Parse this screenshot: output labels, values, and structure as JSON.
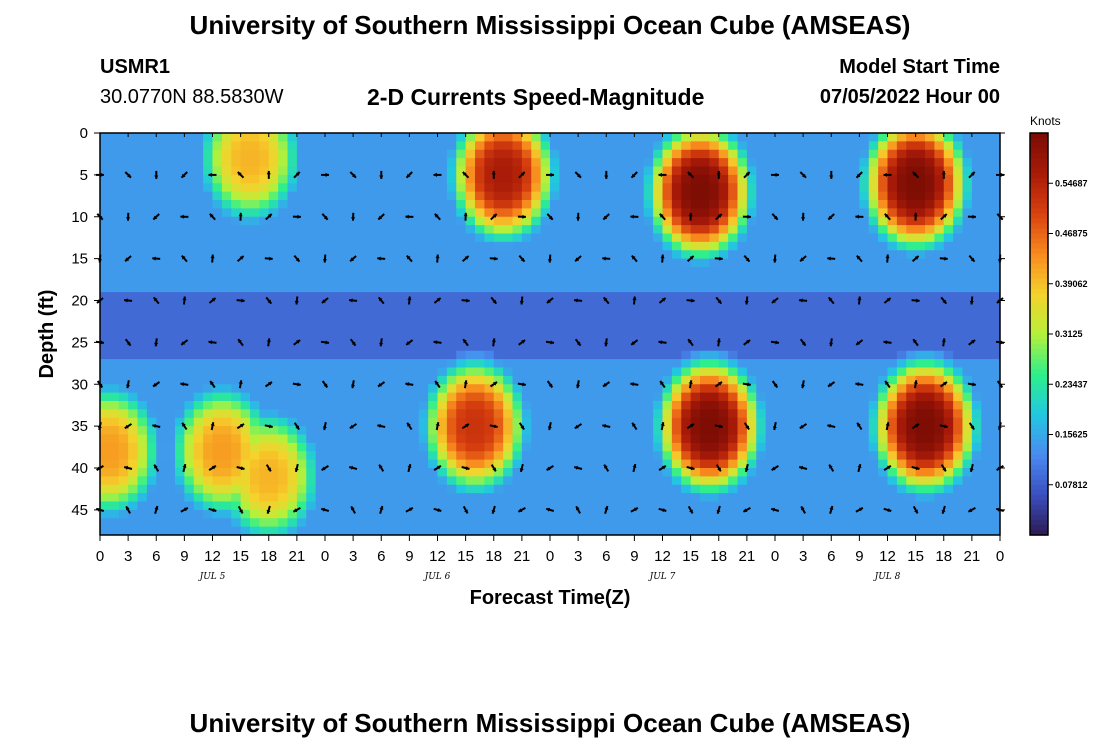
{
  "header": {
    "title": "University of Southern Mississippi Ocean Cube (AMSEAS)",
    "station": "USMR1",
    "coords": "30.0770N  88.5830W",
    "subtitle": "2-D Currents Speed-Magnitude",
    "start_label": "Model Start Time",
    "start_value": "07/05/2022 Hour 00"
  },
  "footer": {
    "title": "University of Southern Mississippi Ocean Cube (AMSEAS)"
  },
  "chart_data": {
    "type": "heatmap",
    "title": "2-D Currents Speed-Magnitude",
    "xlabel": "Forecast Time(Z)",
    "ylabel": "Depth (ft)",
    "x_hours_range": [
      0,
      96
    ],
    "x_tick_labels": [
      "0",
      "3",
      "6",
      "9",
      "12",
      "15",
      "18",
      "21",
      "0",
      "3",
      "6",
      "9",
      "12",
      "15",
      "18",
      "21",
      "0",
      "3",
      "6",
      "9",
      "12",
      "15",
      "18",
      "21",
      "0",
      "3",
      "6",
      "9",
      "12",
      "15",
      "18",
      "21",
      "0"
    ],
    "date_labels": [
      {
        "label": "JUL 5",
        "hour": 12
      },
      {
        "label": "JUL 6",
        "hour": 36
      },
      {
        "label": "JUL 7",
        "hour": 60
      },
      {
        "label": "JUL 8",
        "hour": 84
      }
    ],
    "y_depth_range_ft": [
      0,
      48
    ],
    "y_ticks": [
      "0",
      "5",
      "10",
      "15",
      "20",
      "25",
      "30",
      "35",
      "40",
      "45"
    ],
    "colorbar": {
      "unit": "Knots",
      "range": [
        0,
        0.625
      ],
      "tick_labels": [
        "0.07812",
        "0.15625",
        "0.23437",
        "0.3125",
        "0.39062",
        "0.46875",
        "0.54687"
      ],
      "tick_values": [
        0.078125,
        0.15625,
        0.234375,
        0.3125,
        0.390625,
        0.46875,
        0.546875
      ],
      "colors": [
        "#2c1a54",
        "#3b4fbf",
        "#4a8cf0",
        "#21c8e0",
        "#2ef08a",
        "#b6f03a",
        "#f5d22c",
        "#f8891e",
        "#d8400f",
        "#a81a08",
        "#7a0c04"
      ]
    },
    "speed_blobs": [
      {
        "hour": 16,
        "depth": 3,
        "peak": 0.4
      },
      {
        "hour": 43,
        "depth": 5,
        "peak": 0.56
      },
      {
        "hour": 64,
        "depth": 7,
        "peak": 0.62
      },
      {
        "hour": 87,
        "depth": 6,
        "peak": 0.62
      },
      {
        "hour": 13,
        "depth": 38,
        "peak": 0.42
      },
      {
        "hour": 18,
        "depth": 41,
        "peak": 0.4
      },
      {
        "hour": 40,
        "depth": 35,
        "peak": 0.52
      },
      {
        "hour": 65,
        "depth": 35,
        "peak": 0.62
      },
      {
        "hour": 88,
        "depth": 35,
        "peak": 0.62
      },
      {
        "hour": 1,
        "depth": 38,
        "peak": 0.42
      }
    ],
    "vector_rows_ft": [
      5,
      10,
      15,
      20,
      25,
      30,
      35,
      40,
      45
    ],
    "vector_cols_hours": [
      0,
      3,
      6,
      9,
      12,
      15,
      18,
      21,
      24,
      27,
      30,
      33,
      36,
      39,
      42,
      45,
      48,
      51,
      54,
      57,
      60,
      63,
      66,
      69,
      72,
      75,
      78,
      81,
      84,
      87,
      90,
      93,
      96
    ]
  }
}
